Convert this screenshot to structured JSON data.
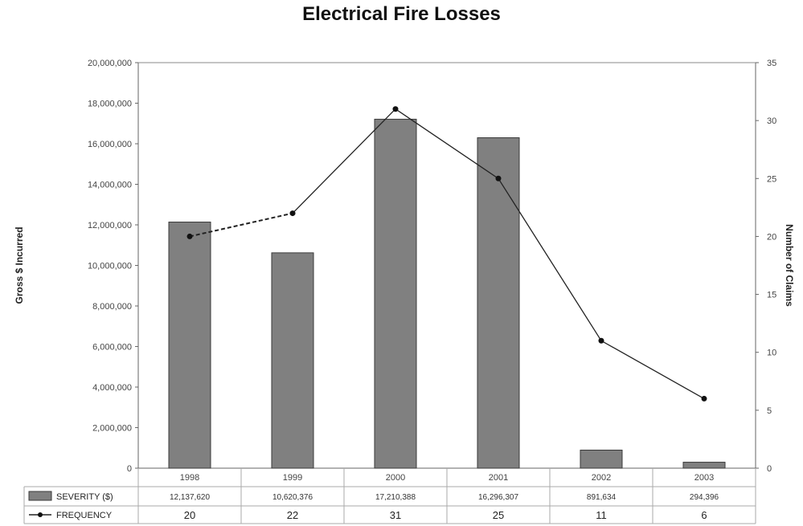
{
  "chart_data": {
    "type": "bar",
    "title": "Electrical Fire Losses",
    "categories": [
      "1998",
      "1999",
      "2000",
      "2001",
      "2002",
      "2003"
    ],
    "series": [
      {
        "name": "SEVERITY ($)",
        "type": "bar",
        "axis": "left",
        "color": "#808080",
        "values": [
          12137620,
          10620376,
          17210388,
          16296307,
          891634,
          294396
        ],
        "table_values": [
          "12,137,620",
          "10,620,376",
          "17,210,388",
          "16,296,307",
          "891,634",
          "294,396"
        ]
      },
      {
        "name": "FREQUENCY",
        "type": "line",
        "axis": "right",
        "color": "#222222",
        "values": [
          20,
          22,
          31,
          25,
          11,
          6
        ],
        "table_values": [
          "20",
          "22",
          "31",
          "25",
          "11",
          "6"
        ]
      }
    ],
    "ylabel": "Gross $ Incurred",
    "y2label": "Number of Claims",
    "ylim": [
      0,
      20000000
    ],
    "y2lim": [
      0,
      35
    ],
    "y_ticks": [
      "0",
      "2,000,000",
      "4,000,000",
      "6,000,000",
      "8,000,000",
      "10,000,000",
      "12,000,000",
      "14,000,000",
      "16,000,000",
      "18,000,000",
      "20,000,000"
    ],
    "y2_ticks": [
      "0",
      "5",
      "10",
      "15",
      "20",
      "25",
      "30",
      "35"
    ],
    "grid": false,
    "legend": "bottom-left data table"
  }
}
